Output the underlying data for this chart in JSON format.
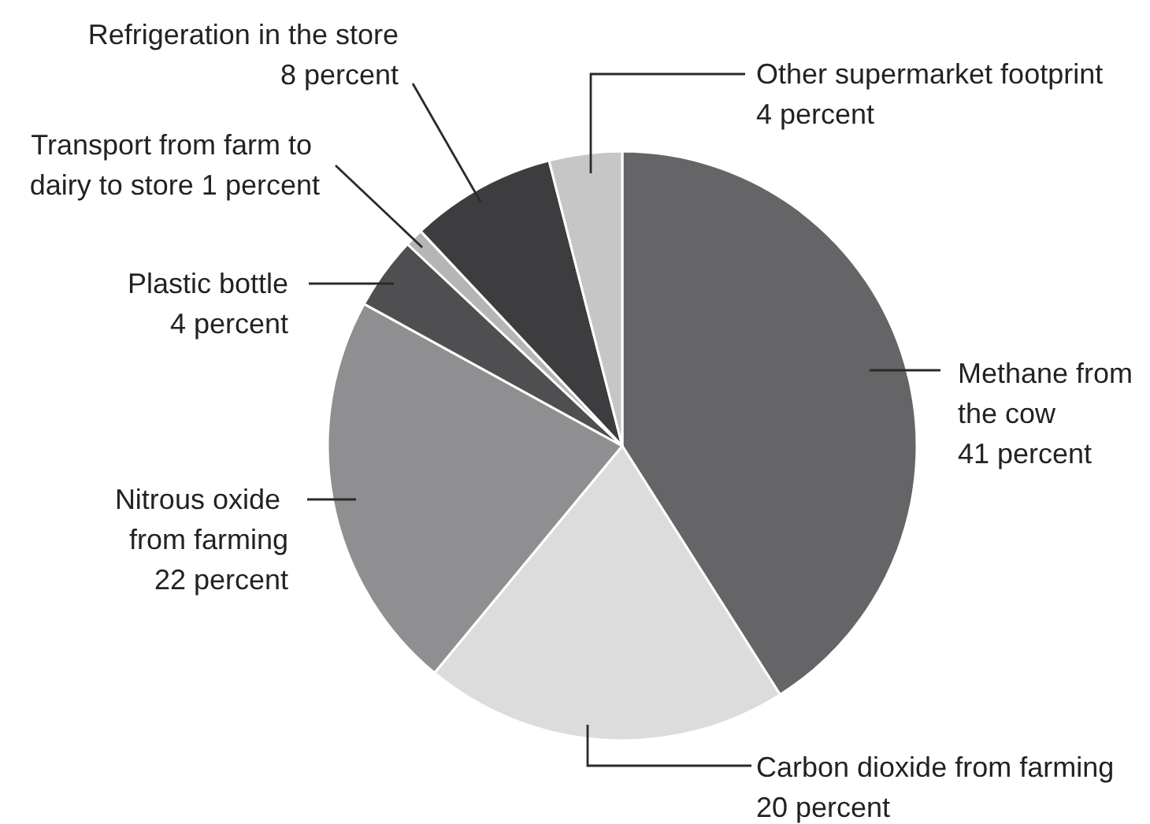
{
  "chart_data": {
    "type": "pie",
    "categories": [
      "Methane from the cow",
      "Carbon dioxide from farming",
      "Nitrous oxide from farming",
      "Plastic bottle",
      "Transport from farm to dairy to store",
      "Refrigeration in the store",
      "Other supermarket footprint"
    ],
    "values": [
      41,
      20,
      22,
      4,
      1,
      8,
      4
    ],
    "colors": [
      "#656567",
      "#dcdcdc",
      "#8f8f91",
      "#4f4f51",
      "#b5b5b5",
      "#3d3d3f",
      "#c6c6c6"
    ],
    "value_labels": [
      "41 percent",
      "20 percent",
      "22 percent",
      "4 percent",
      "1 percent",
      "8 percent",
      "4 percent"
    ]
  }
}
